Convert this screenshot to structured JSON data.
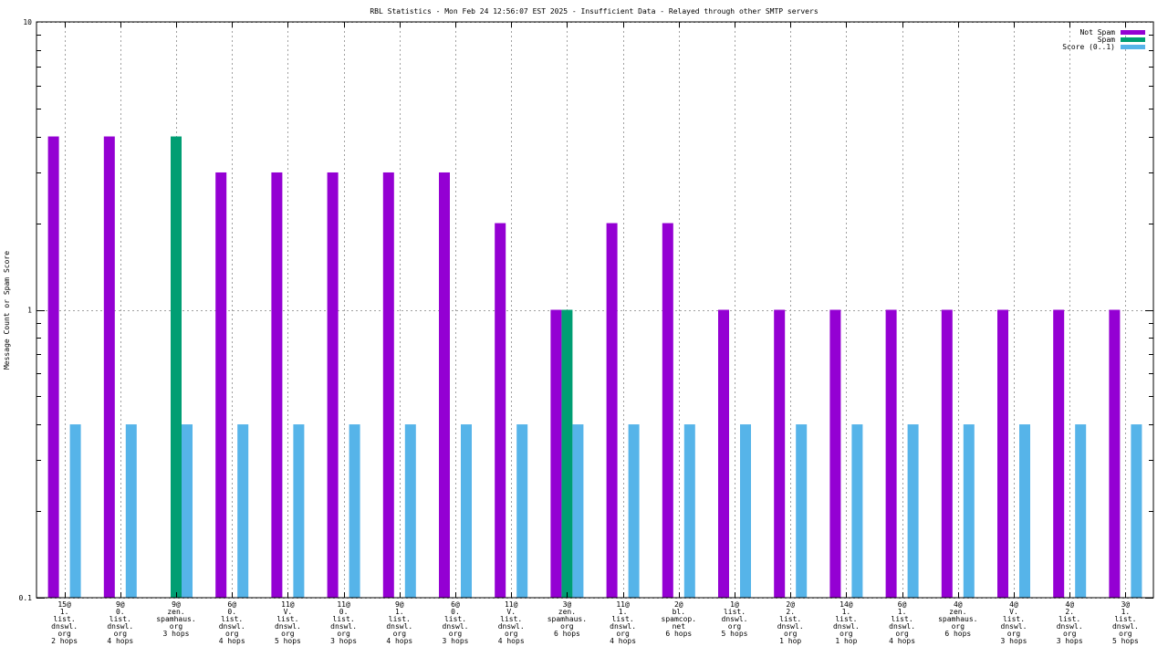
{
  "chart_data": {
    "type": "bar",
    "title": "RBL Statistics - Mon Feb 24 12:56:07 EST 2025 - Insufficient Data - Relayed through other SMTP servers",
    "ylabel": "Message Count or Spam Score",
    "xlabel": "",
    "yscale": "log",
    "ylim": [
      0.1,
      10
    ],
    "yticks": [
      "0.1",
      "1",
      "10"
    ],
    "grid": true,
    "legend_position": "top-right",
    "categories": [
      [
        "15@",
        "1.",
        "list.",
        "dnswl.",
        "org",
        "2 hops"
      ],
      [
        "9@",
        "0.",
        "list.",
        "dnswl.",
        "org",
        "4 hops"
      ],
      [
        "9@",
        "zen.",
        "spamhaus.",
        "org",
        "3 hops"
      ],
      [
        "6@",
        "0.",
        "list.",
        "dnswl.",
        "org",
        "4 hops"
      ],
      [
        "11@",
        "V.",
        "list.",
        "dnswl.",
        "org",
        "5 hops"
      ],
      [
        "11@",
        "0.",
        "list.",
        "dnswl.",
        "org",
        "3 hops"
      ],
      [
        "9@",
        "1.",
        "list.",
        "dnswl.",
        "org",
        "4 hops"
      ],
      [
        "6@",
        "0.",
        "list.",
        "dnswl.",
        "org",
        "3 hops"
      ],
      [
        "11@",
        "V.",
        "list.",
        "dnswl.",
        "org",
        "4 hops"
      ],
      [
        "3@",
        "zen.",
        "spamhaus.",
        "org",
        "6 hops"
      ],
      [
        "11@",
        "1.",
        "list.",
        "dnswl.",
        "org",
        "4 hops"
      ],
      [
        "2@",
        "bl.",
        "spamcop.",
        "net",
        "6 hops"
      ],
      [
        "1@",
        "list.",
        "dnswl.",
        "org",
        "5 hops"
      ],
      [
        "2@",
        "2.",
        "list.",
        "dnswl.",
        "org",
        "1 hop"
      ],
      [
        "14@",
        "1.",
        "list.",
        "dnswl.",
        "org",
        "1 hop"
      ],
      [
        "6@",
        "1.",
        "list.",
        "dnswl.",
        "org",
        "4 hops"
      ],
      [
        "4@",
        "zen.",
        "spamhaus.",
        "org",
        "6 hops"
      ],
      [
        "4@",
        "V.",
        "list.",
        "dnswl.",
        "org",
        "3 hops"
      ],
      [
        "4@",
        "2.",
        "list.",
        "dnswl.",
        "org",
        "3 hops"
      ],
      [
        "3@",
        "1.",
        "list.",
        "dnswl.",
        "org",
        "5 hops"
      ]
    ],
    "series": [
      {
        "name": "Not Spam",
        "color": "#9400d3",
        "values": [
          4,
          4,
          null,
          3,
          3,
          3,
          3,
          3,
          2,
          1,
          2,
          2,
          1,
          1,
          1,
          1,
          1,
          1,
          1,
          1
        ]
      },
      {
        "name": "Spam",
        "color": "#009e73",
        "values": [
          null,
          null,
          4,
          null,
          null,
          null,
          null,
          null,
          null,
          1,
          null,
          null,
          null,
          null,
          null,
          null,
          null,
          null,
          null,
          null
        ]
      },
      {
        "name": "Score (0..1)",
        "color": "#56b4e9",
        "values": [
          0.4,
          0.4,
          0.4,
          0.4,
          0.4,
          0.4,
          0.4,
          0.4,
          0.4,
          0.4,
          0.4,
          0.4,
          0.4,
          0.4,
          0.4,
          0.4,
          0.4,
          0.4,
          0.4,
          0.4
        ]
      }
    ]
  }
}
